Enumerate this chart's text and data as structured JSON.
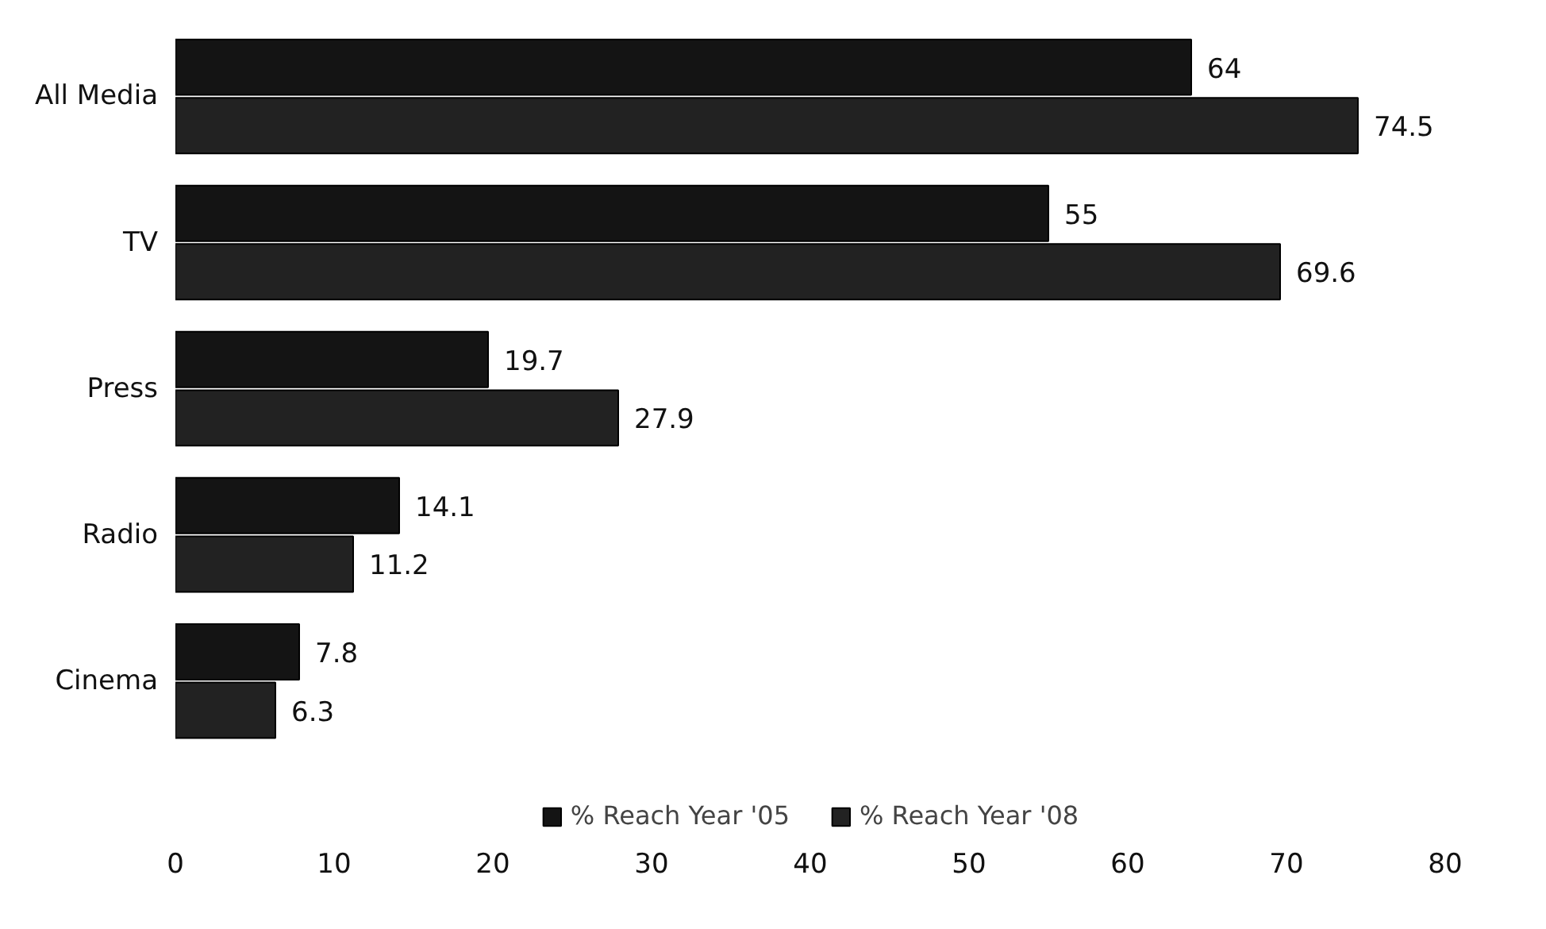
{
  "chart_data": {
    "type": "bar",
    "orientation": "horizontal",
    "categories": [
      "All Media",
      "TV",
      "Press",
      "Radio",
      "Cinema"
    ],
    "series": [
      {
        "name": "% Reach Year '05",
        "color": "#141414",
        "values": [
          64,
          55,
          19.7,
          14.1,
          7.8
        ]
      },
      {
        "name": "% Reach Year '08",
        "color": "#222222",
        "values": [
          74.5,
          69.6,
          27.9,
          11.2,
          6.3
        ]
      }
    ],
    "xlim": [
      0,
      80
    ],
    "xticks": [
      0,
      10,
      20,
      30,
      40,
      50,
      60,
      70,
      80
    ],
    "grid": false,
    "legend": "bottom",
    "data_labels": true
  }
}
